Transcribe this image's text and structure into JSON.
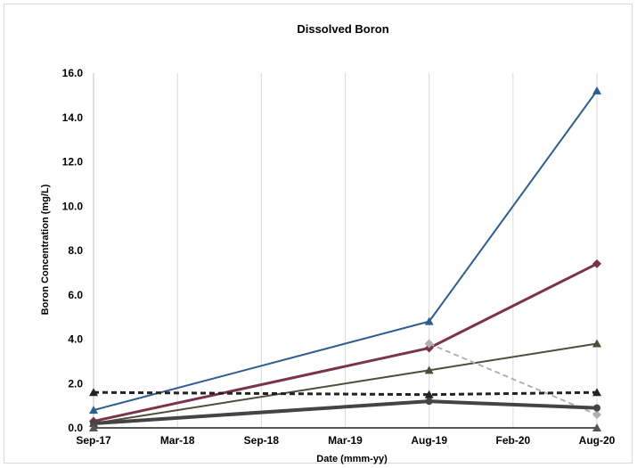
{
  "chart_data": {
    "type": "line",
    "title": "Dissolved Boron",
    "xlabel": "Date (mmm-yy)",
    "ylabel": "Boron Concentration (mg/L)",
    "x_ticks": [
      "Sep-17",
      "Mar-18",
      "Sep-18",
      "Mar-19",
      "Aug-19",
      "Feb-20",
      "Aug-20"
    ],
    "y_ticks": [
      "0.0",
      "2.0",
      "4.0",
      "6.0",
      "8.0",
      "10.0",
      "12.0",
      "14.0",
      "16.0"
    ],
    "ylim": [
      0,
      16
    ],
    "grid": "vertical",
    "legend": "none",
    "series": [
      {
        "color": "#2e5e8f",
        "marker": "triangle",
        "width": 2,
        "points": [
          [
            0,
            0.8
          ],
          [
            4,
            4.8
          ],
          [
            6,
            15.2
          ]
        ]
      },
      {
        "color": "#7b3348",
        "marker": "diamond",
        "width": 3,
        "points": [
          [
            0,
            0.3
          ],
          [
            4,
            3.6
          ],
          [
            6,
            7.4
          ]
        ]
      },
      {
        "color": "#4d4d3a",
        "marker": "triangle",
        "width": 2,
        "points": [
          [
            0,
            0.2
          ],
          [
            4,
            2.6
          ],
          [
            6,
            3.8
          ]
        ]
      },
      {
        "color": "#b0b0b0",
        "marker": "diamond",
        "width": 2,
        "dash": "6,4",
        "points": [
          [
            4,
            3.8
          ],
          [
            6,
            0.6
          ]
        ]
      },
      {
        "color": "#222222",
        "marker": "triangle",
        "width": 3,
        "dash": "6,4",
        "points": [
          [
            0,
            1.6
          ],
          [
            4,
            1.5
          ],
          [
            6,
            1.6
          ]
        ]
      },
      {
        "color": "#444444",
        "marker": "circle",
        "width": 4,
        "points": [
          [
            0,
            0.2
          ],
          [
            4,
            1.2
          ],
          [
            6,
            0.9
          ]
        ]
      },
      {
        "color": "#555555",
        "marker": "triangle",
        "width": 2,
        "points": [
          [
            0,
            0.0
          ],
          [
            6,
            0.0
          ]
        ]
      }
    ]
  }
}
